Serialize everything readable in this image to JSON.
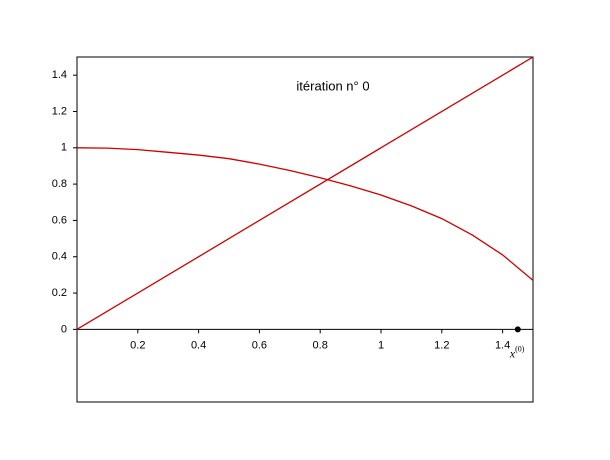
{
  "chart_data": {
    "type": "line",
    "annotation": "itération n° 0",
    "xlim": [
      0,
      1.5
    ],
    "ylim": [
      -0.4,
      1.5
    ],
    "xticks": [
      0.2,
      0.4,
      0.6,
      0.8,
      1,
      1.2,
      1.4
    ],
    "yticks": [
      0,
      0.2,
      0.4,
      0.6,
      0.8,
      1,
      1.2,
      1.4
    ],
    "grid": false,
    "series": [
      {
        "color": "#d00000",
        "x": [
          0,
          0.1,
          0.2,
          0.3,
          0.4,
          0.5,
          0.6,
          0.7,
          0.8,
          0.9,
          1.0,
          1.1,
          1.2,
          1.3,
          1.4,
          1.5
        ],
        "values": [
          1,
          0.998,
          0.99,
          0.975,
          0.96,
          0.94,
          0.91,
          0.875,
          0.835,
          0.79,
          0.74,
          0.68,
          0.61,
          0.52,
          0.41,
          0.27
        ]
      },
      {
        "color": "#d00000",
        "x": [
          0,
          1.5
        ],
        "values": [
          0,
          1.5
        ]
      }
    ],
    "point": {
      "x": 1.45,
      "y": 0,
      "color": "#000000",
      "label": "x",
      "label_sup": "(0)"
    }
  }
}
